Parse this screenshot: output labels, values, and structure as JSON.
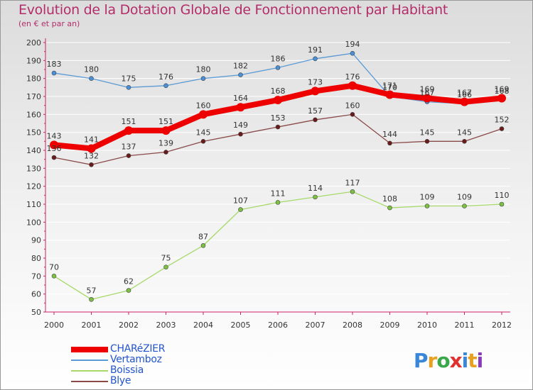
{
  "title": "Evolution de la Dotation Globale de Fonctionnement par Habitant",
  "subtitle": "(en € et par an)",
  "logo": {
    "text": "Proxiti",
    "letter_colors": [
      "#3a86d8",
      "#e8a020",
      "#3aa84a",
      "#e03030",
      "#3a86d8",
      "#e8a020",
      "#8a3ab8"
    ]
  },
  "chart_data": {
    "type": "line",
    "title": "Evolution de la Dotation Globale de Fonctionnement par Habitant",
    "subtitle": "(en € et par an)",
    "x": [
      "2000",
      "2001",
      "2002",
      "2003",
      "2004",
      "2005",
      "2006",
      "2007",
      "2008",
      "2009",
      "2010",
      "2011",
      "2012"
    ],
    "ylim": [
      50,
      200
    ],
    "yticks": [
      50,
      60,
      70,
      80,
      90,
      100,
      110,
      120,
      130,
      140,
      150,
      160,
      170,
      180,
      190,
      200
    ],
    "grid": "horizontal",
    "legend_position": "bottom-left",
    "series": [
      {
        "name": "Vertamboz",
        "color": "#5b9bd5",
        "marker_color": "#4a90d9",
        "emphasis": false,
        "values": [
          183,
          180,
          175,
          176,
          180,
          182,
          186,
          191,
          194,
          170,
          167,
          166,
          168
        ],
        "labels": [
          "183",
          "180",
          "175",
          "176",
          "180",
          "182",
          "186",
          "191",
          "194",
          "170",
          "167",
          "166",
          "168"
        ]
      },
      {
        "name": "Boissia",
        "color": "#a6d96a",
        "marker_color": "#7cc142",
        "emphasis": false,
        "values": [
          70,
          57,
          62,
          75,
          87,
          107,
          111,
          114,
          117,
          108,
          109,
          109,
          110
        ],
        "labels": [
          "70",
          "57",
          "62",
          "75",
          "87",
          "107",
          "111",
          "114",
          "117",
          "108",
          "109",
          "109",
          "110"
        ]
      },
      {
        "name": "Blye",
        "color": "#8b4a4a",
        "marker_color": "#6b1a1a",
        "emphasis": false,
        "values": [
          136,
          132,
          137,
          139,
          145,
          149,
          153,
          157,
          160,
          144,
          145,
          145,
          152
        ],
        "labels": [
          "136",
          "132",
          "137",
          "139",
          "145",
          "149",
          "153",
          "157",
          "160",
          "144",
          "145",
          "145",
          "152"
        ]
      },
      {
        "name": "CHARéZIER",
        "color": "#ee0000",
        "marker_color": "#ee0000",
        "emphasis": true,
        "values": [
          143,
          141,
          151,
          151,
          160,
          164,
          168,
          173,
          176,
          171,
          169,
          167,
          169
        ],
        "labels": [
          "143",
          "141",
          "151",
          "151",
          "160",
          "164",
          "168",
          "173",
          "176",
          "171",
          "169",
          "167",
          "169"
        ]
      }
    ],
    "legend": [
      "CHARéZIER",
      "Vertamboz",
      "Boissia",
      "Blye"
    ]
  }
}
